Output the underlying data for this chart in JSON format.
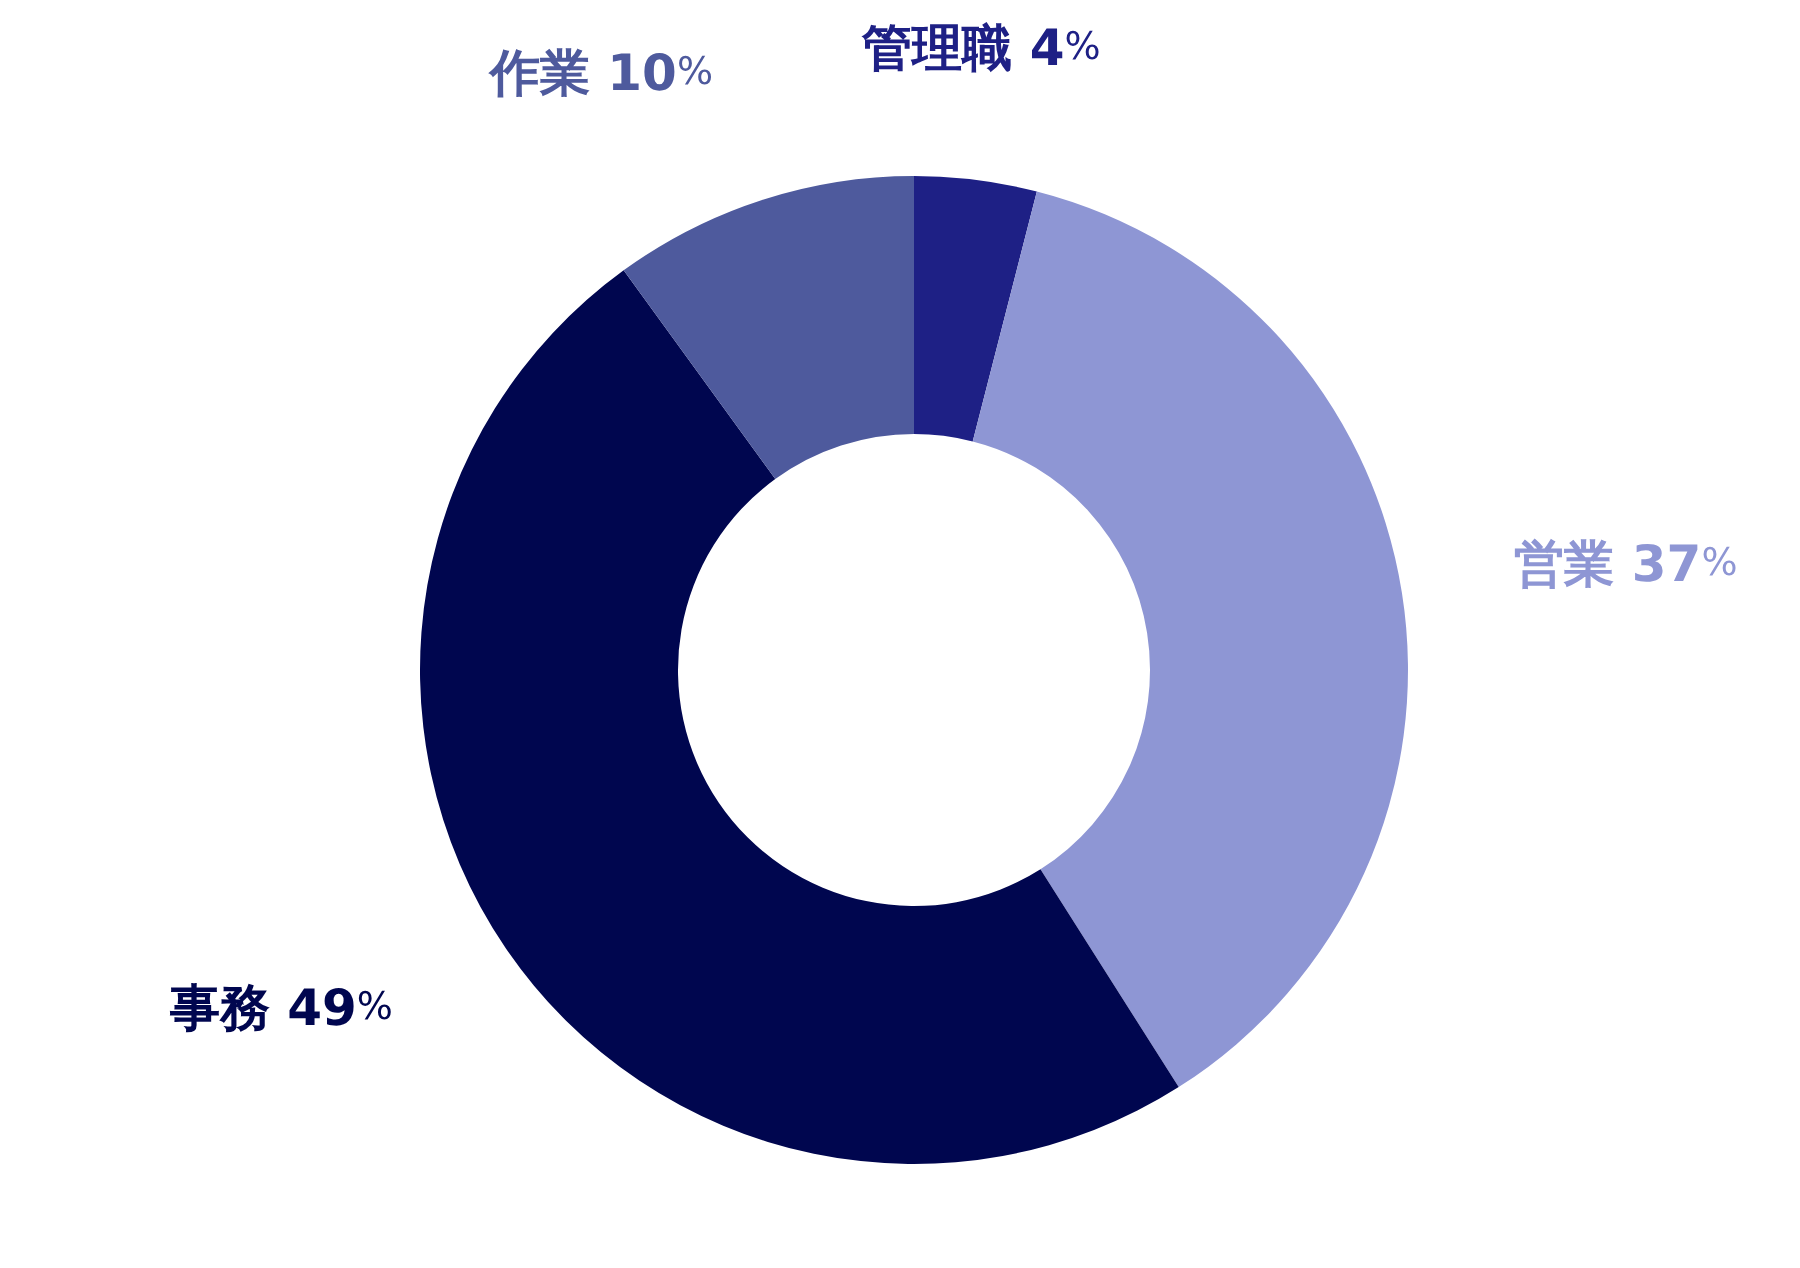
{
  "chart_data": {
    "type": "donut",
    "categories": [
      "管理職",
      "営業",
      "事務",
      "作業"
    ],
    "values": [
      4,
      37,
      49,
      10
    ],
    "colors": [
      "#1e2085",
      "#8e96d4",
      "#00064f",
      "#4e5a9d"
    ],
    "value_labels": [
      "4%",
      "37%",
      "49%",
      "10%"
    ]
  }
}
